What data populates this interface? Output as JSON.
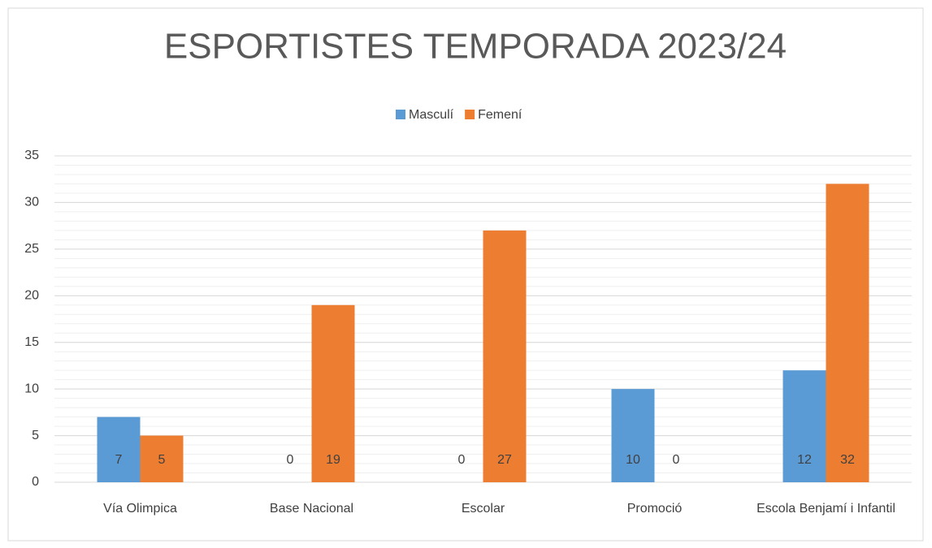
{
  "chart_data": {
    "type": "bar",
    "title": "ESPORTISTES TEMPORADA 2023/24",
    "categories": [
      "Vía Olimpica",
      "Base Nacional",
      "Escolar",
      "Promoció",
      "Escola Benjamí i Infantil"
    ],
    "series": [
      {
        "name": "Masculí",
        "color": "#5b9bd5",
        "values": [
          7,
          0,
          0,
          10,
          12
        ]
      },
      {
        "name": "Femení",
        "color": "#ed7d31",
        "values": [
          5,
          19,
          27,
          0,
          32
        ]
      }
    ],
    "ylim": [
      0,
      35
    ],
    "yticks": [
      0,
      5,
      10,
      15,
      20,
      25,
      30,
      35
    ],
    "grid": true,
    "minor_grid": true,
    "legend": "top"
  }
}
